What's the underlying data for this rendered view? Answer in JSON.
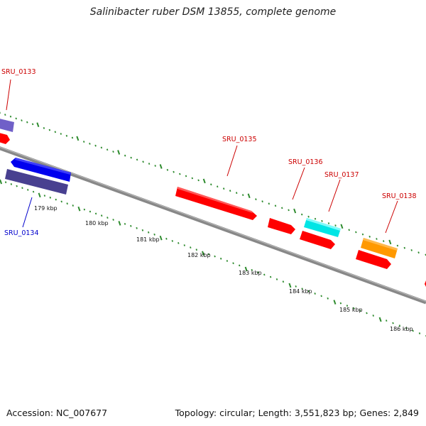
{
  "title": "Salinibacter ruber DSM 13855, complete genome",
  "footer": {
    "accession": "Accession: NC_007677",
    "summary": "Topology: circular; Length: 3,551,823 bp; Genes: 2,849"
  },
  "scale": {
    "unit": "kbp",
    "labels": [
      "179 kbp",
      "180 kbp",
      "181 kbp",
      "182 kbp",
      "183 kbp",
      "184 kbp",
      "185 kbp",
      "186 kbp"
    ]
  },
  "gene_labels": [
    {
      "name": "SRU_0133",
      "color": "#cc0000"
    },
    {
      "name": "SRU_0134",
      "color": "#0000cc"
    },
    {
      "name": "SRU_0135",
      "color": "#cc0000"
    },
    {
      "name": "SRU_0136",
      "color": "#cc0000"
    },
    {
      "name": "SRU_0137",
      "color": "#cc0000"
    },
    {
      "name": "SRU_0138",
      "color": "#cc0000"
    }
  ],
  "colors": {
    "backbone": "#888888",
    "ticks": "#2e8b2e",
    "cds_forward": "#ff0000",
    "cds_reverse": "#0000ff",
    "rna_slate": "#7060c8",
    "rna_dark": "#484090",
    "tRNA": "#00e5e5",
    "other": "#ff9900"
  }
}
